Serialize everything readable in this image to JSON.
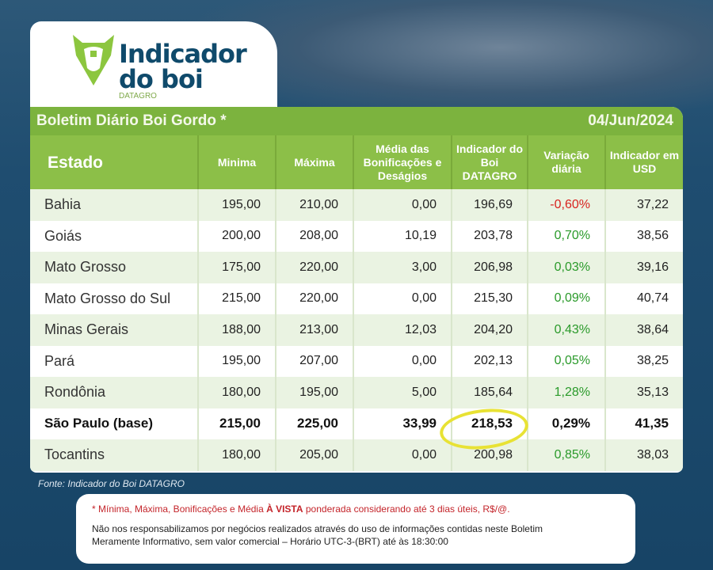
{
  "logo": {
    "line1": "Indicador",
    "line2": "do boi",
    "brand": "DATAGRO"
  },
  "title": "Boletim Diário Boi Gordo *",
  "date": "04/Jun/2024",
  "columns": [
    "Estado",
    "Minima",
    "Máxima",
    "Média das Bonificações e Deságios",
    "Indicador do Boi DATAGRO",
    "Variação diária",
    "Indicador em USD"
  ],
  "rows": [
    {
      "estado": "Bahia",
      "min": "195,00",
      "max": "210,00",
      "media": "0,00",
      "indicador": "196,69",
      "variacao": "-0,60%",
      "usd": "37,22"
    },
    {
      "estado": "Goiás",
      "min": "200,00",
      "max": "208,00",
      "media": "10,19",
      "indicador": "203,78",
      "variacao": "0,70%",
      "usd": "38,56"
    },
    {
      "estado": "Mato Grosso",
      "min": "175,00",
      "max": "220,00",
      "media": "3,00",
      "indicador": "206,98",
      "variacao": "0,03%",
      "usd": "39,16"
    },
    {
      "estado": "Mato Grosso do Sul",
      "min": "215,00",
      "max": "220,00",
      "media": "0,00",
      "indicador": "215,30",
      "variacao": "0,09%",
      "usd": "40,74"
    },
    {
      "estado": "Minas Gerais",
      "min": "188,00",
      "max": "213,00",
      "media": "12,03",
      "indicador": "204,20",
      "variacao": "0,43%",
      "usd": "38,64"
    },
    {
      "estado": "Pará",
      "min": "195,00",
      "max": "207,00",
      "media": "0,00",
      "indicador": "202,13",
      "variacao": "0,05%",
      "usd": "38,25"
    },
    {
      "estado": "Rondônia",
      "min": "180,00",
      "max": "195,00",
      "media": "5,00",
      "indicador": "185,64",
      "variacao": "1,28%",
      "usd": "35,13"
    },
    {
      "estado": "São Paulo (base)",
      "min": "215,00",
      "max": "225,00",
      "media": "33,99",
      "indicador": "218,53",
      "variacao": "0,29%",
      "usd": "41,35"
    },
    {
      "estado": "Tocantins",
      "min": "180,00",
      "max": "205,00",
      "media": "0,00",
      "indicador": "200,98",
      "variacao": "0,85%",
      "usd": "38,03"
    }
  ],
  "fonte": "Fonte: Indicador do Boi DATAGRO",
  "note": {
    "pre": "* Mínima,  Máxima,  Bonificações e Média ",
    "bold": "À VISTA",
    "post": " ponderada considerando até 3 dias úteis, R$/@.",
    "line1": "Não nos responsabilizamos por negócios realizados através do uso de informações contidas neste Boletim",
    "line2": "Meramente Informativo,  sem valor comercial – Horário UTC-3-(BRT)  até às 18:30:00"
  },
  "colors": {
    "green": "#7cb33e",
    "header": "#8cbf48",
    "negative": "#d8231f",
    "positive": "#2a9a2a",
    "highlight": "#e8e234"
  }
}
